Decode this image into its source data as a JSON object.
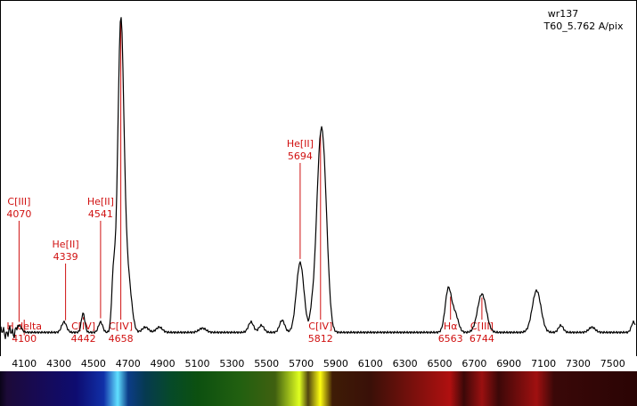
{
  "chart_data": {
    "type": "line",
    "title": "wr137",
    "subtitle": "T60_5.762 A/pix",
    "xlim": [
      3960,
      7640
    ],
    "ylim": [
      0,
      1
    ],
    "ticks": [
      4100,
      4300,
      4500,
      4700,
      4900,
      5100,
      5300,
      5500,
      5700,
      5900,
      6100,
      6300,
      6500,
      6700,
      6900,
      7100,
      7300,
      7500
    ],
    "tick_labels": [
      "4100",
      "4300",
      "4500",
      "4700",
      "4900",
      "5100",
      "5300",
      "5500",
      "5700",
      "5900",
      "6100",
      "6300",
      "6500",
      "6700",
      "6900",
      "7100",
      "7300",
      "7500"
    ],
    "series": [
      {
        "color": "#000000",
        "continuum": 0.063,
        "features": [
          {
            "x": 4070,
            "y": 0.02,
            "w": 14
          },
          {
            "x": 4330,
            "y": 0.03,
            "w": 14
          },
          {
            "x": 4440,
            "y": 0.055,
            "w": 10
          },
          {
            "x": 4541,
            "y": 0.03,
            "w": 12
          },
          {
            "x": 4615,
            "y": 0.15,
            "w": 10
          },
          {
            "x": 4658,
            "y": 0.89,
            "w": 18
          },
          {
            "x": 4700,
            "y": 0.15,
            "w": 20
          },
          {
            "x": 4800,
            "y": 0.015,
            "w": 18
          },
          {
            "x": 4880,
            "y": 0.015,
            "w": 18
          },
          {
            "x": 5130,
            "y": 0.012,
            "w": 20
          },
          {
            "x": 5410,
            "y": 0.03,
            "w": 15
          },
          {
            "x": 5470,
            "y": 0.02,
            "w": 15
          },
          {
            "x": 5590,
            "y": 0.035,
            "w": 15
          },
          {
            "x": 5694,
            "y": 0.2,
            "w": 22
          },
          {
            "x": 5760,
            "y": 0.03,
            "w": 10
          },
          {
            "x": 5812,
            "y": 0.52,
            "w": 25
          },
          {
            "x": 5840,
            "y": 0.15,
            "w": 20
          },
          {
            "x": 6550,
            "y": 0.125,
            "w": 18
          },
          {
            "x": 6590,
            "y": 0.05,
            "w": 18
          },
          {
            "x": 6744,
            "y": 0.11,
            "w": 25
          },
          {
            "x": 7060,
            "y": 0.12,
            "w": 25
          },
          {
            "x": 7200,
            "y": 0.02,
            "w": 14
          },
          {
            "x": 7380,
            "y": 0.015,
            "w": 18
          },
          {
            "x": 7620,
            "y": 0.03,
            "w": 12
          }
        ]
      }
    ],
    "line_labels": [
      {
        "name": "C[III]",
        "value": "4070",
        "x": 4070,
        "position": "above"
      },
      {
        "name": "He[II]",
        "value": "4339",
        "x": 4339,
        "position": "above"
      },
      {
        "name": "He[II]",
        "value": "4541",
        "x": 4541,
        "position": "above"
      },
      {
        "name": "H delta",
        "value": "4100",
        "x": 4100,
        "position": "below"
      },
      {
        "name": "C[IV]",
        "value": "4442",
        "x": 4442,
        "position": "below"
      },
      {
        "name": "C[IV]",
        "value": "4658",
        "x": 4658,
        "position": "below"
      },
      {
        "name": "He[II]",
        "value": "5694",
        "x": 5694,
        "position": "above"
      },
      {
        "name": "C[IV]",
        "value": "5812",
        "x": 5812,
        "position": "below"
      },
      {
        "name": "Hα",
        "value": "6563",
        "x": 6563,
        "position": "below"
      },
      {
        "name": "C[III]",
        "value": "6744",
        "x": 6744,
        "position": "below"
      }
    ],
    "colors": {
      "line_label": "#d01010",
      "spectrum_line": "#000000"
    },
    "spectrum_strip": {
      "bands": [
        {
          "x": 3960,
          "color": "#0a0418"
        },
        {
          "x": 4000,
          "color": "#1c0a38"
        },
        {
          "x": 4150,
          "color": "#180a50"
        },
        {
          "x": 4400,
          "color": "#0e0c70"
        },
        {
          "x": 4560,
          "color": "#1030a8"
        },
        {
          "x": 4640,
          "color": "#60e0ff"
        },
        {
          "x": 4700,
          "color": "#0c3c88"
        },
        {
          "x": 4800,
          "color": "#063a50"
        },
        {
          "x": 4950,
          "color": "#064a28"
        },
        {
          "x": 5100,
          "color": "#0c5010"
        },
        {
          "x": 5350,
          "color": "#226010"
        },
        {
          "x": 5550,
          "color": "#406010"
        },
        {
          "x": 5690,
          "color": "#e0ff20"
        },
        {
          "x": 5740,
          "color": "#504410"
        },
        {
          "x": 5810,
          "color": "#ffff10"
        },
        {
          "x": 5880,
          "color": "#3e1c06"
        },
        {
          "x": 6100,
          "color": "#3a1008"
        },
        {
          "x": 6560,
          "color": "#b01010"
        },
        {
          "x": 6640,
          "color": "#3c0808"
        },
        {
          "x": 6744,
          "color": "#9a1010"
        },
        {
          "x": 6840,
          "color": "#3c0808"
        },
        {
          "x": 7060,
          "color": "#a01010"
        },
        {
          "x": 7160,
          "color": "#3a0808"
        },
        {
          "x": 7640,
          "color": "#2a0404"
        }
      ]
    }
  }
}
